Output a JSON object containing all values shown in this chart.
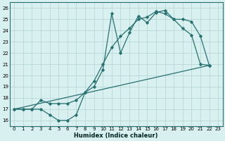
{
  "xlabel": "Humidex (Indice chaleur)",
  "bg_color": "#d8f0f0",
  "grid_color": "#b8d8d8",
  "line_color": "#2a7070",
  "xlim": [
    -0.5,
    23.5
  ],
  "ylim": [
    15.5,
    26.5
  ],
  "xticks": [
    0,
    1,
    2,
    3,
    4,
    5,
    6,
    7,
    8,
    9,
    10,
    11,
    12,
    13,
    14,
    15,
    16,
    17,
    18,
    19,
    20,
    21,
    22,
    23
  ],
  "yticks": [
    16,
    17,
    18,
    19,
    20,
    21,
    22,
    23,
    24,
    25,
    26
  ],
  "line1_x": [
    0,
    1,
    2,
    3,
    4,
    5,
    6,
    7,
    8,
    9,
    10,
    11,
    12,
    13,
    14,
    15,
    16,
    17,
    18,
    19,
    20,
    21,
    22
  ],
  "line1_y": [
    17.0,
    17.0,
    17.0,
    17.0,
    16.5,
    16.0,
    16.0,
    16.5,
    18.5,
    19.0,
    20.5,
    25.5,
    22.0,
    23.8,
    25.3,
    24.7,
    25.6,
    25.8,
    25.0,
    24.2,
    23.6,
    21.0,
    20.9
  ],
  "line2_x": [
    0,
    1,
    2,
    3,
    4,
    5,
    6,
    7,
    8,
    9,
    10,
    11,
    12,
    13,
    14,
    15,
    16,
    17,
    18,
    19,
    20,
    21,
    22
  ],
  "line2_y": [
    17.0,
    17.0,
    17.0,
    17.8,
    17.5,
    17.5,
    17.5,
    17.8,
    18.5,
    19.5,
    21.0,
    22.5,
    23.5,
    24.2,
    25.0,
    25.2,
    25.7,
    25.5,
    25.0,
    25.0,
    24.8,
    23.5,
    20.9
  ],
  "line3_x": [
    0,
    22
  ],
  "line3_y": [
    17.0,
    20.9
  ]
}
